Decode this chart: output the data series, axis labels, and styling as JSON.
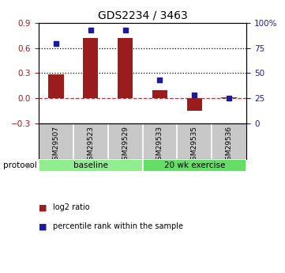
{
  "title": "GDS2234 / 3463",
  "samples": [
    "GSM29507",
    "GSM29523",
    "GSM29529",
    "GSM29533",
    "GSM29535",
    "GSM29536"
  ],
  "log2_ratio": [
    0.29,
    0.72,
    0.72,
    0.1,
    -0.15,
    0.01
  ],
  "percentile_rank": [
    80,
    93,
    93,
    43,
    28,
    25
  ],
  "bar_color": "#9B1C1C",
  "point_color": "#1C1C9B",
  "ylim_left": [
    -0.3,
    0.9
  ],
  "ylim_right": [
    0,
    100
  ],
  "yticks_left": [
    -0.3,
    0.0,
    0.3,
    0.6,
    0.9
  ],
  "yticks_right": [
    0,
    25,
    50,
    75,
    100
  ],
  "ytick_labels_right": [
    "0",
    "25",
    "50",
    "75",
    "100%"
  ],
  "hlines_dotted": [
    0.3,
    0.6
  ],
  "hline_dashed": 0.0,
  "protocol_groups": [
    {
      "label": "baseline",
      "start": 0,
      "end": 3,
      "color": "#90EE90"
    },
    {
      "label": "20 wk exercise",
      "start": 3,
      "end": 6,
      "color": "#66DD66"
    }
  ],
  "legend_bar_label": "log2 ratio",
  "legend_point_label": "percentile rank within the sample",
  "protocol_label": "protocol",
  "background_color": "#ffffff",
  "plot_bg_color": "#ffffff",
  "tick_area_color": "#C8C8C8"
}
